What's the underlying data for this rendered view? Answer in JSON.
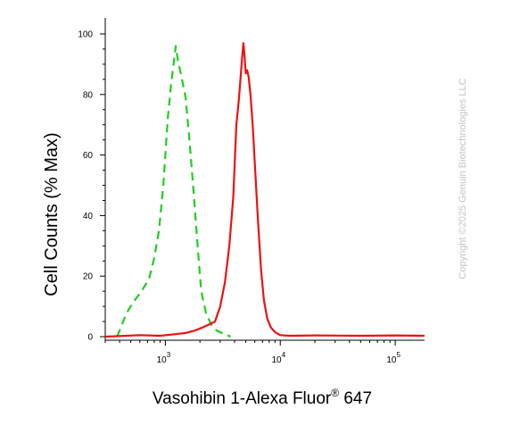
{
  "chart_data": {
    "type": "line",
    "xlabel": "Vasohibin 1-Alexa Fluor",
    "xlabel_superscript": "®",
    "xlabel_suffix": " 647",
    "ylabel": "Cell Counts (% Max)",
    "watermark": "Copyright ©2025 Genuin Biotechnologies LLC",
    "x_scale": "log",
    "xlim": [
      300,
      180000
    ],
    "ylim": [
      0,
      100
    ],
    "yticks": [
      0,
      20,
      40,
      60,
      80,
      100
    ],
    "xticks": [
      {
        "value": 1000,
        "base": "10",
        "exp": "3"
      },
      {
        "value": 10000,
        "base": "10",
        "exp": "4"
      },
      {
        "value": 100000,
        "base": "10",
        "exp": "5"
      }
    ],
    "grid": false,
    "series": [
      {
        "color": "#22cc22",
        "dash": "dashed",
        "points": [
          [
            380,
            0
          ],
          [
            400,
            2
          ],
          [
            440,
            6
          ],
          [
            480,
            9
          ],
          [
            540,
            12
          ],
          [
            620,
            15
          ],
          [
            720,
            19
          ],
          [
            800,
            26
          ],
          [
            880,
            35
          ],
          [
            960,
            50
          ],
          [
            1050,
            72
          ],
          [
            1120,
            83
          ],
          [
            1180,
            90
          ],
          [
            1230,
            96
          ],
          [
            1290,
            91
          ],
          [
            1380,
            86
          ],
          [
            1500,
            79
          ],
          [
            1620,
            65
          ],
          [
            1760,
            48
          ],
          [
            1900,
            31
          ],
          [
            2050,
            15
          ],
          [
            2250,
            8
          ],
          [
            2500,
            4
          ],
          [
            2800,
            2
          ],
          [
            3200,
            1
          ],
          [
            3700,
            0
          ]
        ]
      },
      {
        "color": "#ee1111",
        "dash": "solid",
        "points": [
          [
            300,
            0
          ],
          [
            600,
            0.5
          ],
          [
            900,
            0.3
          ],
          [
            1200,
            0.8
          ],
          [
            1500,
            1.2
          ],
          [
            1800,
            2
          ],
          [
            2100,
            3
          ],
          [
            2400,
            4
          ],
          [
            2700,
            5
          ],
          [
            3000,
            10
          ],
          [
            3300,
            18
          ],
          [
            3600,
            30
          ],
          [
            3900,
            46
          ],
          [
            4150,
            70
          ],
          [
            4350,
            78
          ],
          [
            4500,
            85
          ],
          [
            4650,
            92
          ],
          [
            4780,
            97
          ],
          [
            4880,
            93
          ],
          [
            5000,
            87
          ],
          [
            5150,
            88
          ],
          [
            5300,
            86
          ],
          [
            5500,
            80
          ],
          [
            5750,
            70
          ],
          [
            6050,
            55
          ],
          [
            6400,
            38
          ],
          [
            6800,
            22
          ],
          [
            7200,
            12
          ],
          [
            7700,
            6
          ],
          [
            8300,
            3
          ],
          [
            9000,
            1.5
          ],
          [
            10000,
            0.5
          ],
          [
            12000,
            0.3
          ],
          [
            20000,
            0.4
          ],
          [
            50000,
            0.3
          ],
          [
            100000,
            0.4
          ],
          [
            180000,
            0.3
          ]
        ]
      }
    ]
  }
}
